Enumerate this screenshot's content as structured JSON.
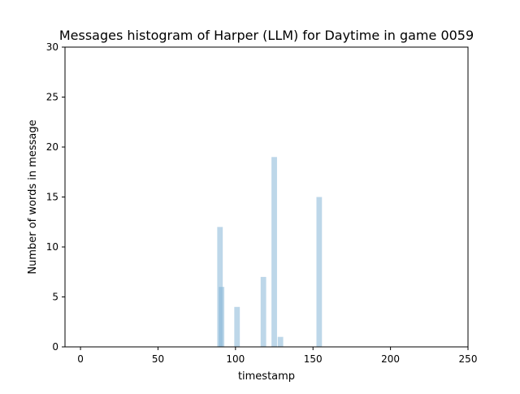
{
  "chart_data": {
    "type": "bar",
    "title": "Messages histogram of Harper (LLM) for Daytime in game 0059",
    "xlabel": "timestamp",
    "ylabel": "Number of words in message",
    "xlim": [
      -10,
      250
    ],
    "ylim": [
      0,
      30
    ],
    "xticks": [
      "0",
      "50",
      "100",
      "150",
      "200",
      "250"
    ],
    "xtick_values": [
      0,
      50,
      100,
      150,
      200,
      250
    ],
    "yticks": [
      "0",
      "5",
      "10",
      "15",
      "20",
      "25",
      "30"
    ],
    "ytick_values": [
      0,
      5,
      10,
      15,
      20,
      25,
      30
    ],
    "grid": false,
    "legend": "none",
    "bar_color": "#7bafd4",
    "bar_opacity": 0.5,
    "bars": [
      {
        "x": 90,
        "y": 12
      },
      {
        "x": 91,
        "y": 6
      },
      {
        "x": 101,
        "y": 4
      },
      {
        "x": 118,
        "y": 7
      },
      {
        "x": 125,
        "y": 19
      },
      {
        "x": 129,
        "y": 1
      },
      {
        "x": 154,
        "y": 15
      }
    ]
  }
}
